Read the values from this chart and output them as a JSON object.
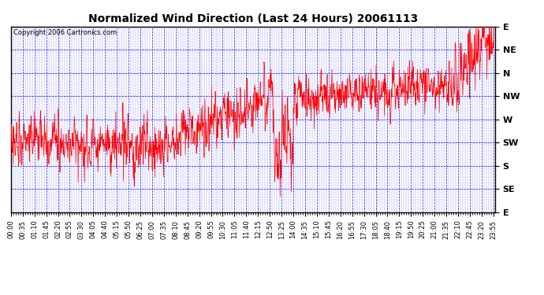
{
  "title": "Normalized Wind Direction (Last 24 Hours) 20061113",
  "copyright": "Copyright 2006 Cartronics.com",
  "background_color": "#ffffff",
  "line_color": "#ff0000",
  "grid_color": "#0000ff",
  "ytick_labels": [
    "E",
    "SE",
    "S",
    "SW",
    "W",
    "NW",
    "N",
    "NE",
    "E"
  ],
  "ytick_values": [
    0,
    45,
    90,
    135,
    180,
    225,
    270,
    315,
    360
  ],
  "xtick_interval_minutes": 35,
  "figsize": [
    6.9,
    3.75
  ],
  "dpi": 100,
  "title_fontsize": 10,
  "copyright_fontsize": 6,
  "xtick_fontsize": 6,
  "ytick_fontsize": 8
}
